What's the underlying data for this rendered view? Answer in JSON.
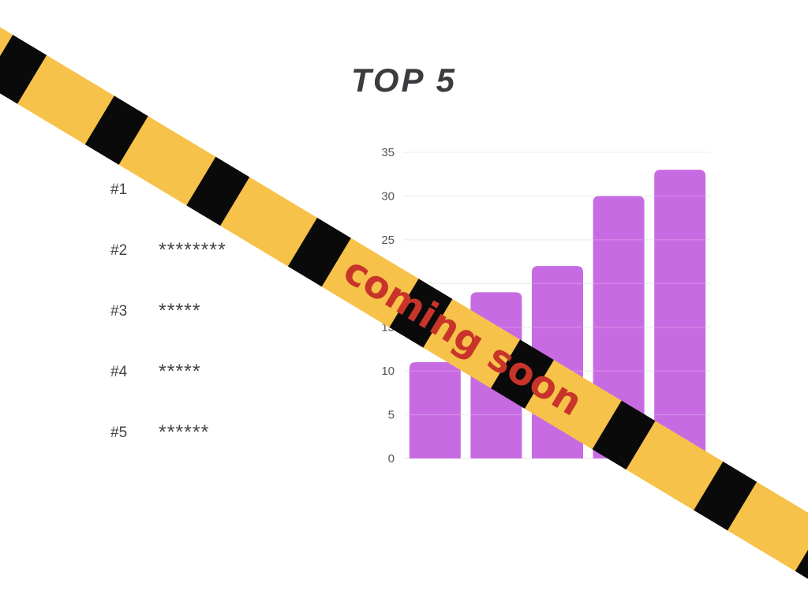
{
  "title": "TOP 5",
  "ranking": [
    {
      "rank": "#1",
      "name": "*******"
    },
    {
      "rank": "#2",
      "name": "********"
    },
    {
      "rank": "#3",
      "name": "*****"
    },
    {
      "rank": "#4",
      "name": "*****"
    },
    {
      "rank": "#5",
      "name": "******"
    }
  ],
  "overlay": {
    "text": "coming soon",
    "tape_colors": {
      "yellow": "#f7c24a",
      "black": "#0a0a0a"
    },
    "text_color": "#c8342a"
  },
  "chart_data": {
    "type": "bar",
    "categories": [
      "",
      "",
      "",
      "",
      ""
    ],
    "values": [
      11,
      19,
      22,
      30,
      33
    ],
    "ylim": [
      0,
      35
    ],
    "yticks": [
      "0",
      "5",
      "10",
      "15",
      "20",
      "25",
      "30",
      "35"
    ],
    "grid": true,
    "bar_color": "#c76be3"
  }
}
